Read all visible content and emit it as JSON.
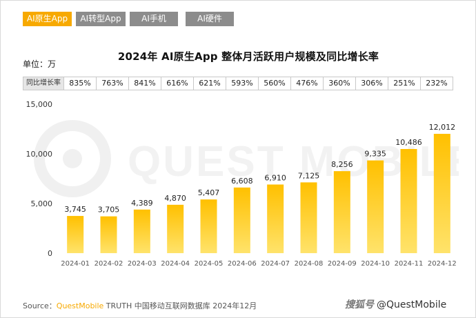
{
  "tabs": [
    {
      "label": "AI原生App",
      "active": true
    },
    {
      "label": "AI转型App",
      "active": false
    },
    {
      "label": "AI手机",
      "active": false
    },
    {
      "label": "AI硬件",
      "active": false
    }
  ],
  "unit_label": "单位：万",
  "growth_label": "同比增长率",
  "growth": [
    "835%",
    "763%",
    "841%",
    "616%",
    "621%",
    "593%",
    "560%",
    "476%",
    "360%",
    "306%",
    "251%",
    "232%"
  ],
  "watermark_text": "QUEST MOBILE",
  "source": {
    "prefix": "Source：",
    "brand": "QuestMobile",
    "rest": " TRUTH 中国移动互联网数据库 2024年12月"
  },
  "credit": {
    "mark": "搜狐号",
    "handle": "@QuestMobile"
  },
  "colors": {
    "tab_active": "#f7a900",
    "tab_inactive": "#8c8c8c",
    "bar_top": "#ffc000",
    "bar_bottom": "#ffe36b"
  },
  "chart_data": {
    "type": "bar",
    "title": "2024年 AI原生App 整体月活跃用户规模及同比增长率",
    "categories": [
      "2024-01",
      "2024-02",
      "2024-03",
      "2024-04",
      "2024-05",
      "2024-06",
      "2024-07",
      "2024-08",
      "2024-09",
      "2024-10",
      "2024-11",
      "2024-12"
    ],
    "values": [
      3745,
      3705,
      4389,
      4870,
      5407,
      6608,
      6910,
      7125,
      8256,
      9335,
      10486,
      12012
    ],
    "data_labels": [
      "3,745",
      "3,705",
      "4,389",
      "4,870",
      "5,407",
      "6,608",
      "6,910",
      "7,125",
      "8,256",
      "9,335",
      "10,486",
      "12,012"
    ],
    "yticks": [
      0,
      5000,
      10000,
      15000
    ],
    "ytick_labels": [
      "0",
      "5,000",
      "10,000",
      "15,000"
    ],
    "ylim": [
      0,
      15000
    ],
    "grid": false,
    "legend": "none"
  }
}
